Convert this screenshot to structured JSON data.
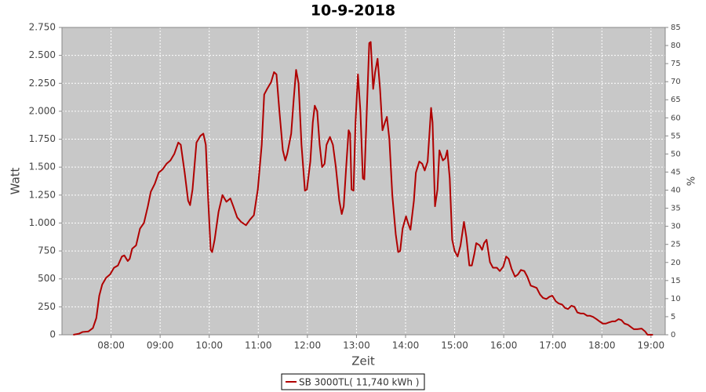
{
  "chart_data": {
    "type": "line",
    "title": "10-9-2018",
    "xlabel": "Zeit",
    "ylabel": "Watt",
    "y2label": "%",
    "xlim": [
      7.0,
      19.29
    ],
    "ylim": [
      0,
      2750
    ],
    "y2lim": [
      0,
      85
    ],
    "xticks": [
      {
        "value": 8,
        "label": "08:00"
      },
      {
        "value": 9,
        "label": "09:00"
      },
      {
        "value": 10,
        "label": "10:00"
      },
      {
        "value": 11,
        "label": "11:00"
      },
      {
        "value": 12,
        "label": "12:00"
      },
      {
        "value": 13,
        "label": "13:00"
      },
      {
        "value": 14,
        "label": "14:00"
      },
      {
        "value": 15,
        "label": "15:00"
      },
      {
        "value": 16,
        "label": "16:00"
      },
      {
        "value": 17,
        "label": "17:00"
      },
      {
        "value": 18,
        "label": "18:00"
      },
      {
        "value": 19,
        "label": "19:00"
      }
    ],
    "yticks": [
      0,
      250,
      500,
      750,
      {
        "value": 1000,
        "label": "1.000"
      },
      {
        "value": 1250,
        "label": "1.250"
      },
      {
        "value": 1500,
        "label": "1.500"
      },
      {
        "value": 1750,
        "label": "1.750"
      },
      {
        "value": 2000,
        "label": "2.000"
      },
      {
        "value": 2250,
        "label": "2.250"
      },
      {
        "value": 2500,
        "label": "2.500"
      },
      {
        "value": 2750,
        "label": "2.750"
      }
    ],
    "y2ticks": [
      0,
      5,
      10,
      15,
      20,
      25,
      30,
      35,
      40,
      45,
      50,
      55,
      60,
      65,
      70,
      75,
      80,
      85
    ],
    "grid": true,
    "legend": "bottom",
    "x": [
      7.23,
      7.35,
      7.42,
      7.54,
      7.63,
      7.7,
      7.76,
      7.82,
      7.9,
      7.98,
      8.06,
      8.14,
      8.22,
      8.27,
      8.34,
      8.38,
      8.43,
      8.51,
      8.59,
      8.67,
      8.75,
      8.81,
      8.89,
      8.97,
      9.05,
      9.13,
      9.21,
      9.29,
      9.37,
      9.42,
      9.5,
      9.57,
      9.61,
      9.66,
      9.74,
      9.82,
      9.88,
      9.93,
      9.98,
      10.03,
      10.06,
      10.11,
      10.19,
      10.27,
      10.35,
      10.43,
      10.49,
      10.57,
      10.65,
      10.75,
      10.83,
      10.91,
      10.99,
      11.07,
      11.12,
      11.18,
      11.26,
      11.32,
      11.37,
      11.43,
      11.5,
      11.55,
      11.59,
      11.67,
      11.72,
      11.77,
      11.82,
      11.88,
      11.95,
      11.99,
      12.06,
      12.11,
      12.15,
      12.2,
      12.25,
      12.3,
      12.35,
      12.39,
      12.46,
      12.52,
      12.58,
      12.65,
      12.7,
      12.74,
      12.79,
      12.84,
      12.87,
      12.9,
      12.94,
      12.98,
      13.03,
      13.08,
      13.13,
      13.16,
      13.21,
      13.26,
      13.29,
      13.34,
      13.38,
      13.43,
      13.48,
      13.53,
      13.58,
      13.62,
      13.67,
      13.73,
      13.8,
      13.85,
      13.89,
      13.94,
      14.01,
      14.05,
      14.1,
      14.17,
      14.21,
      14.28,
      14.34,
      14.39,
      14.45,
      14.52,
      14.55,
      14.6,
      14.65,
      14.69,
      14.76,
      14.81,
      14.85,
      14.9,
      14.95,
      15.0,
      15.06,
      15.12,
      15.19,
      15.24,
      15.3,
      15.35,
      15.4,
      15.44,
      15.51,
      15.56,
      15.6,
      15.65,
      15.72,
      15.78,
      15.86,
      15.92,
      15.99,
      16.05,
      16.1,
      16.16,
      16.23,
      16.29,
      16.35,
      16.42,
      16.48,
      16.55,
      16.61,
      16.67,
      16.74,
      16.8,
      16.87,
      16.93,
      16.99,
      17.06,
      17.12,
      17.19,
      17.25,
      17.31,
      17.38,
      17.44,
      17.5,
      17.57,
      17.63,
      17.7,
      17.76,
      17.82,
      17.89,
      17.95,
      18.02,
      18.08,
      18.14,
      18.21,
      18.27,
      18.34,
      18.4,
      18.46,
      18.53,
      18.59,
      18.65,
      18.72,
      18.81,
      18.88,
      18.93,
      19.04
    ],
    "series": [
      {
        "name": "SB 3000TL( 11,740 kWh )",
        "color": "#b00000",
        "values": [
          0,
          10,
          25,
          30,
          60,
          150,
          350,
          450,
          510,
          540,
          600,
          620,
          700,
          710,
          660,
          680,
          770,
          800,
          950,
          1000,
          1150,
          1280,
          1350,
          1450,
          1480,
          1530,
          1560,
          1620,
          1720,
          1700,
          1450,
          1200,
          1160,
          1300,
          1720,
          1780,
          1800,
          1700,
          1200,
          760,
          740,
          850,
          1100,
          1250,
          1190,
          1220,
          1150,
          1050,
          1010,
          980,
          1030,
          1070,
          1300,
          1700,
          2150,
          2200,
          2260,
          2350,
          2330,
          2000,
          1650,
          1560,
          1620,
          1800,
          2100,
          2370,
          2250,
          1700,
          1290,
          1300,
          1550,
          1900,
          2050,
          2000,
          1700,
          1500,
          1530,
          1700,
          1770,
          1700,
          1500,
          1200,
          1080,
          1150,
          1500,
          1830,
          1800,
          1300,
          1290,
          1900,
          2330,
          2000,
          1400,
          1390,
          2000,
          2610,
          2620,
          2200,
          2350,
          2470,
          2200,
          1830,
          1900,
          1950,
          1750,
          1250,
          900,
          740,
          750,
          950,
          1060,
          1000,
          940,
          1200,
          1450,
          1550,
          1530,
          1470,
          1550,
          2030,
          1900,
          1150,
          1300,
          1650,
          1560,
          1580,
          1650,
          1400,
          850,
          750,
          700,
          800,
          1010,
          870,
          620,
          620,
          720,
          820,
          800,
          760,
          820,
          850,
          650,
          600,
          600,
          570,
          610,
          700,
          680,
          590,
          520,
          540,
          580,
          570,
          520,
          440,
          430,
          420,
          360,
          330,
          320,
          340,
          350,
          300,
          280,
          270,
          240,
          230,
          260,
          250,
          200,
          190,
          190,
          170,
          170,
          160,
          140,
          120,
          100,
          100,
          110,
          120,
          120,
          140,
          130,
          100,
          90,
          70,
          50,
          50,
          55,
          30,
          0,
          0
        ]
      }
    ]
  }
}
